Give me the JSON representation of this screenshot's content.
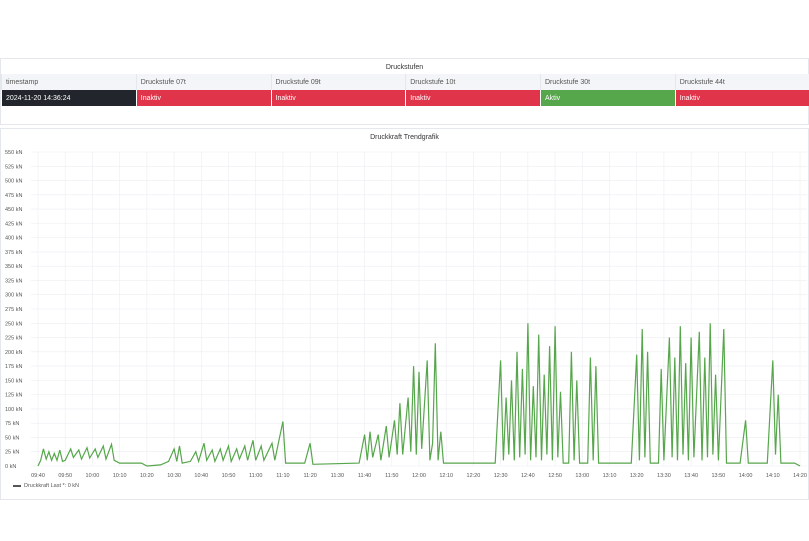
{
  "status_panel": {
    "title": "Druckstufen",
    "columns": [
      "timestamp",
      "Druckstufe 07t",
      "Druckstufe 09t",
      "Druckstufe 10t",
      "Druckstufe 30t",
      "Druckstufe 44t"
    ],
    "row": [
      "2024-11-20 14:36:24",
      "Inaktiv",
      "Inaktiv",
      "Inaktiv",
      "Aktiv",
      "Inaktiv"
    ],
    "colors": {
      "timestamp": "#22252b",
      "Inaktiv": "#e0344a",
      "Aktiv": "#56a64b"
    }
  },
  "chart_data": {
    "type": "line",
    "title": "Druckkraft Trendgrafik",
    "ylim": [
      0,
      550
    ],
    "y_ticks": [
      "0 kN",
      "25 kN",
      "50 kN",
      "75 kN",
      "100 kN",
      "125 kN",
      "150 kN",
      "175 kN",
      "200 kN",
      "225 kN",
      "250 kN",
      "275 kN",
      "300 kN",
      "325 kN",
      "350 kN",
      "375 kN",
      "400 kN",
      "425 kN",
      "450 kN",
      "475 kN",
      "500 kN",
      "525 kN",
      "550 kN"
    ],
    "x_ticks": [
      "09:40",
      "09:50",
      "10:00",
      "10:10",
      "10:20",
      "10:30",
      "10:40",
      "10:50",
      "11:00",
      "11:10",
      "11:20",
      "11:30",
      "11:40",
      "11:50",
      "12:00",
      "12:10",
      "12:20",
      "12:30",
      "12:40",
      "12:50",
      "13:00",
      "13:10",
      "13:20",
      "13:30",
      "13:40",
      "13:50",
      "14:00",
      "14:10",
      "14:20"
    ],
    "grid": true,
    "legend_position": "bottom-left",
    "legend_text": "Druckkraft  Last *: 0 kN",
    "series": [
      {
        "name": "Druckkraft",
        "color": "#56a64b",
        "points": [
          [
            "09:40",
            0
          ],
          [
            "09:41",
            10
          ],
          [
            "09:42",
            30
          ],
          [
            "09:43",
            12
          ],
          [
            "09:44",
            25
          ],
          [
            "09:45",
            10
          ],
          [
            "09:46",
            22
          ],
          [
            "09:47",
            10
          ],
          [
            "09:48",
            28
          ],
          [
            "09:49",
            8
          ],
          [
            "09:50",
            10
          ],
          [
            "09:52",
            30
          ],
          [
            "09:53",
            15
          ],
          [
            "09:55",
            28
          ],
          [
            "09:56",
            12
          ],
          [
            "09:58",
            32
          ],
          [
            "09:59",
            14
          ],
          [
            "10:01",
            30
          ],
          [
            "10:02",
            15
          ],
          [
            "10:04",
            35
          ],
          [
            "10:05",
            12
          ],
          [
            "10:07",
            38
          ],
          [
            "10:08",
            10
          ],
          [
            "10:10",
            5
          ],
          [
            "10:18",
            5
          ],
          [
            "10:20",
            0
          ],
          [
            "10:25",
            2
          ],
          [
            "10:28",
            8
          ],
          [
            "10:30",
            30
          ],
          [
            "10:31",
            8
          ],
          [
            "10:32",
            35
          ],
          [
            "10:33",
            5
          ],
          [
            "10:36",
            8
          ],
          [
            "10:38",
            25
          ],
          [
            "10:39",
            8
          ],
          [
            "10:41",
            40
          ],
          [
            "10:42",
            10
          ],
          [
            "10:44",
            28
          ],
          [
            "10:45",
            8
          ],
          [
            "10:47",
            30
          ],
          [
            "10:48",
            10
          ],
          [
            "10:50",
            35
          ],
          [
            "10:51",
            8
          ],
          [
            "10:53",
            30
          ],
          [
            "10:54",
            12
          ],
          [
            "10:56",
            35
          ],
          [
            "10:57",
            10
          ],
          [
            "10:59",
            45
          ],
          [
            "11:00",
            10
          ],
          [
            "11:02",
            35
          ],
          [
            "11:03",
            10
          ],
          [
            "11:06",
            40
          ],
          [
            "11:07",
            10
          ],
          [
            "11:10",
            78
          ],
          [
            "11:11",
            5
          ],
          [
            "11:18",
            5
          ],
          [
            "11:20",
            40
          ],
          [
            "11:21",
            3
          ],
          [
            "11:38",
            5
          ],
          [
            "11:40",
            55
          ],
          [
            "11:41",
            10
          ],
          [
            "11:42",
            60
          ],
          [
            "11:43",
            15
          ],
          [
            "11:45",
            55
          ],
          [
            "11:46",
            10
          ],
          [
            "11:48",
            70
          ],
          [
            "11:49",
            15
          ],
          [
            "11:51",
            80
          ],
          [
            "11:52",
            20
          ],
          [
            "11:53",
            110
          ],
          [
            "11:54",
            20
          ],
          [
            "11:56",
            120
          ],
          [
            "11:57",
            25
          ],
          [
            "11:58",
            175
          ],
          [
            "11:59",
            20
          ],
          [
            "12:00",
            165
          ],
          [
            "12:01",
            30
          ],
          [
            "12:03",
            185
          ],
          [
            "12:04",
            10
          ],
          [
            "12:05",
            40
          ],
          [
            "12:06",
            215
          ],
          [
            "12:07",
            10
          ],
          [
            "12:08",
            60
          ],
          [
            "12:09",
            5
          ],
          [
            "12:28",
            5
          ],
          [
            "12:30",
            185
          ],
          [
            "12:31",
            10
          ],
          [
            "12:32",
            120
          ],
          [
            "12:33",
            20
          ],
          [
            "12:34",
            150
          ],
          [
            "12:35",
            10
          ],
          [
            "12:36",
            200
          ],
          [
            "12:37",
            15
          ],
          [
            "12:38",
            170
          ],
          [
            "12:39",
            20
          ],
          [
            "12:40",
            250
          ],
          [
            "12:41",
            10
          ],
          [
            "12:42",
            140
          ],
          [
            "12:43",
            15
          ],
          [
            "12:44",
            230
          ],
          [
            "12:45",
            10
          ],
          [
            "12:46",
            160
          ],
          [
            "12:47",
            20
          ],
          [
            "12:48",
            210
          ],
          [
            "12:49",
            10
          ],
          [
            "12:50",
            245
          ],
          [
            "12:51",
            15
          ],
          [
            "12:52",
            130
          ],
          [
            "12:53",
            5
          ],
          [
            "12:55",
            5
          ],
          [
            "12:56",
            200
          ],
          [
            "12:57",
            10
          ],
          [
            "12:58",
            150
          ],
          [
            "12:59",
            5
          ],
          [
            "13:02",
            5
          ],
          [
            "13:03",
            190
          ],
          [
            "13:04",
            10
          ],
          [
            "13:05",
            175
          ],
          [
            "13:06",
            5
          ],
          [
            "13:18",
            5
          ],
          [
            "13:20",
            195
          ],
          [
            "13:21",
            10
          ],
          [
            "13:22",
            240
          ],
          [
            "13:23",
            15
          ],
          [
            "13:24",
            200
          ],
          [
            "13:25",
            5
          ],
          [
            "13:28",
            5
          ],
          [
            "13:29",
            170
          ],
          [
            "13:30",
            10
          ],
          [
            "13:32",
            225
          ],
          [
            "13:33",
            15
          ],
          [
            "13:34",
            190
          ],
          [
            "13:35",
            10
          ],
          [
            "13:36",
            245
          ],
          [
            "13:37",
            20
          ],
          [
            "13:38",
            180
          ],
          [
            "13:39",
            10
          ],
          [
            "13:40",
            225
          ],
          [
            "13:41",
            15
          ],
          [
            "13:43",
            235
          ],
          [
            "13:44",
            10
          ],
          [
            "13:45",
            190
          ],
          [
            "13:46",
            15
          ],
          [
            "13:47",
            250
          ],
          [
            "13:48",
            20
          ],
          [
            "13:49",
            160
          ],
          [
            "13:50",
            10
          ],
          [
            "13:52",
            240
          ],
          [
            "13:53",
            5
          ],
          [
            "13:55",
            5
          ],
          [
            "13:58",
            5
          ],
          [
            "14:00",
            80
          ],
          [
            "14:01",
            5
          ],
          [
            "14:08",
            5
          ],
          [
            "14:10",
            185
          ],
          [
            "14:11",
            20
          ],
          [
            "14:12",
            125
          ],
          [
            "14:13",
            5
          ],
          [
            "14:18",
            5
          ],
          [
            "14:20",
            0
          ]
        ]
      }
    ]
  }
}
